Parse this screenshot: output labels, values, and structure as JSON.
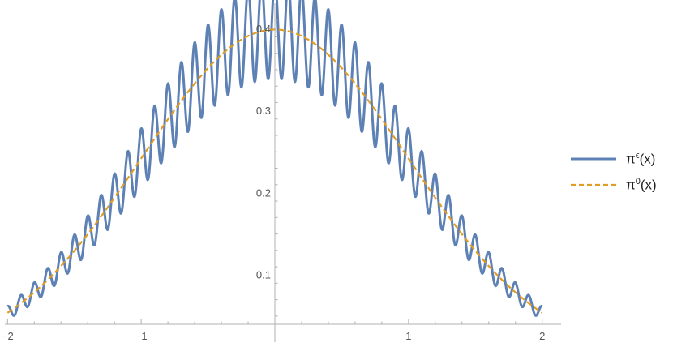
{
  "chart_data": {
    "type": "line",
    "title": "",
    "xlabel": "",
    "ylabel": "",
    "xlim": [
      -2.02,
      2.02
    ],
    "ylim": [
      0.04,
      0.425
    ],
    "x_ticks": [
      -2,
      -1,
      0,
      1,
      2
    ],
    "x_tick_labels": [
      "−2",
      "−1",
      "",
      "1",
      "2"
    ],
    "x_minor_step": 0.2,
    "y_ticks": [
      0.1,
      0.2,
      0.3,
      0.4
    ],
    "y_tick_labels": [
      "0.1",
      "0.2",
      "0.3",
      "0.4"
    ],
    "grid": false,
    "legend_placement": "right",
    "series": [
      {
        "name_base": "π",
        "name_sup": "ϵ",
        "name_suffix": "(x)",
        "color": "#5e81b5",
        "style": "solid",
        "function": "0.3989*exp(-x^2/2)*(1+0.15*cos(2*pi*x/0.1))",
        "x_range": [
          -2,
          2
        ],
        "oscillation_period": 0.1,
        "relative_amplitude": 0.15
      },
      {
        "name_base": "π",
        "name_sup": "0",
        "name_suffix": "(x)",
        "color": "#e19c24",
        "style": "dashed",
        "function": "0.3989*exp(-x^2/2)",
        "x_range": [
          -2,
          2
        ]
      }
    ]
  }
}
